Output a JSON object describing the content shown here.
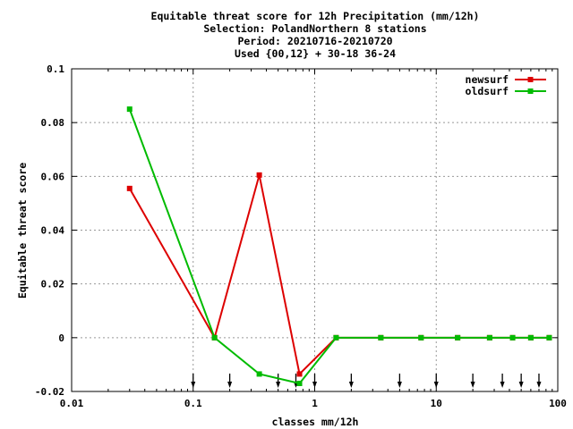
{
  "chart_data": {
    "type": "line",
    "title_lines": [
      "Equitable threat score  for 12h Precipitation (mm/12h)",
      "Selection: PolandNorthern      8 stations",
      "Period: 20210716-20210720",
      "Used {00,12} + 30-18 36-24"
    ],
    "xlabel": "classes mm/12h",
    "ylabel": "Equitable threat score",
    "x_scale": "log",
    "xlim": [
      0.01,
      100
    ],
    "ylim": [
      -0.02,
      0.1
    ],
    "x_ticks": [
      0.01,
      0.1,
      1,
      10,
      100
    ],
    "x_tick_labels": [
      "0.01",
      "0.1",
      "1",
      "10",
      "100"
    ],
    "y_ticks": [
      -0.02,
      0,
      0.02,
      0.04,
      0.06,
      0.08,
      0.1
    ],
    "y_tick_labels": [
      "-0.02",
      "0",
      "0.02",
      "0.04",
      "0.06",
      "0.08",
      "0.1"
    ],
    "grid": true,
    "legend_position": "top-right",
    "threshold_arrows_x": [
      0.1,
      0.2,
      0.5,
      0.7,
      1,
      2,
      5,
      10,
      20,
      35,
      50,
      70
    ],
    "series": [
      {
        "name": "newsurf",
        "color": "#dd0000",
        "x": [
          0.03,
          0.15,
          0.35,
          0.75,
          1.5,
          3.5,
          7.5,
          15,
          27.5,
          42.5,
          60,
          85
        ],
        "y": [
          0.0555,
          0.0,
          0.0605,
          -0.0135,
          0.0,
          0.0,
          0.0,
          0.0,
          0.0,
          0.0,
          0.0,
          0.0
        ]
      },
      {
        "name": "oldsurf",
        "color": "#00bb00",
        "x": [
          0.03,
          0.15,
          0.35,
          0.75,
          1.5,
          3.5,
          7.5,
          15,
          27.5,
          42.5,
          60,
          85
        ],
        "y": [
          0.085,
          0.0,
          -0.0135,
          -0.017,
          0.0,
          0.0,
          0.0,
          0.0,
          0.0,
          0.0,
          0.0,
          0.0
        ]
      }
    ]
  }
}
